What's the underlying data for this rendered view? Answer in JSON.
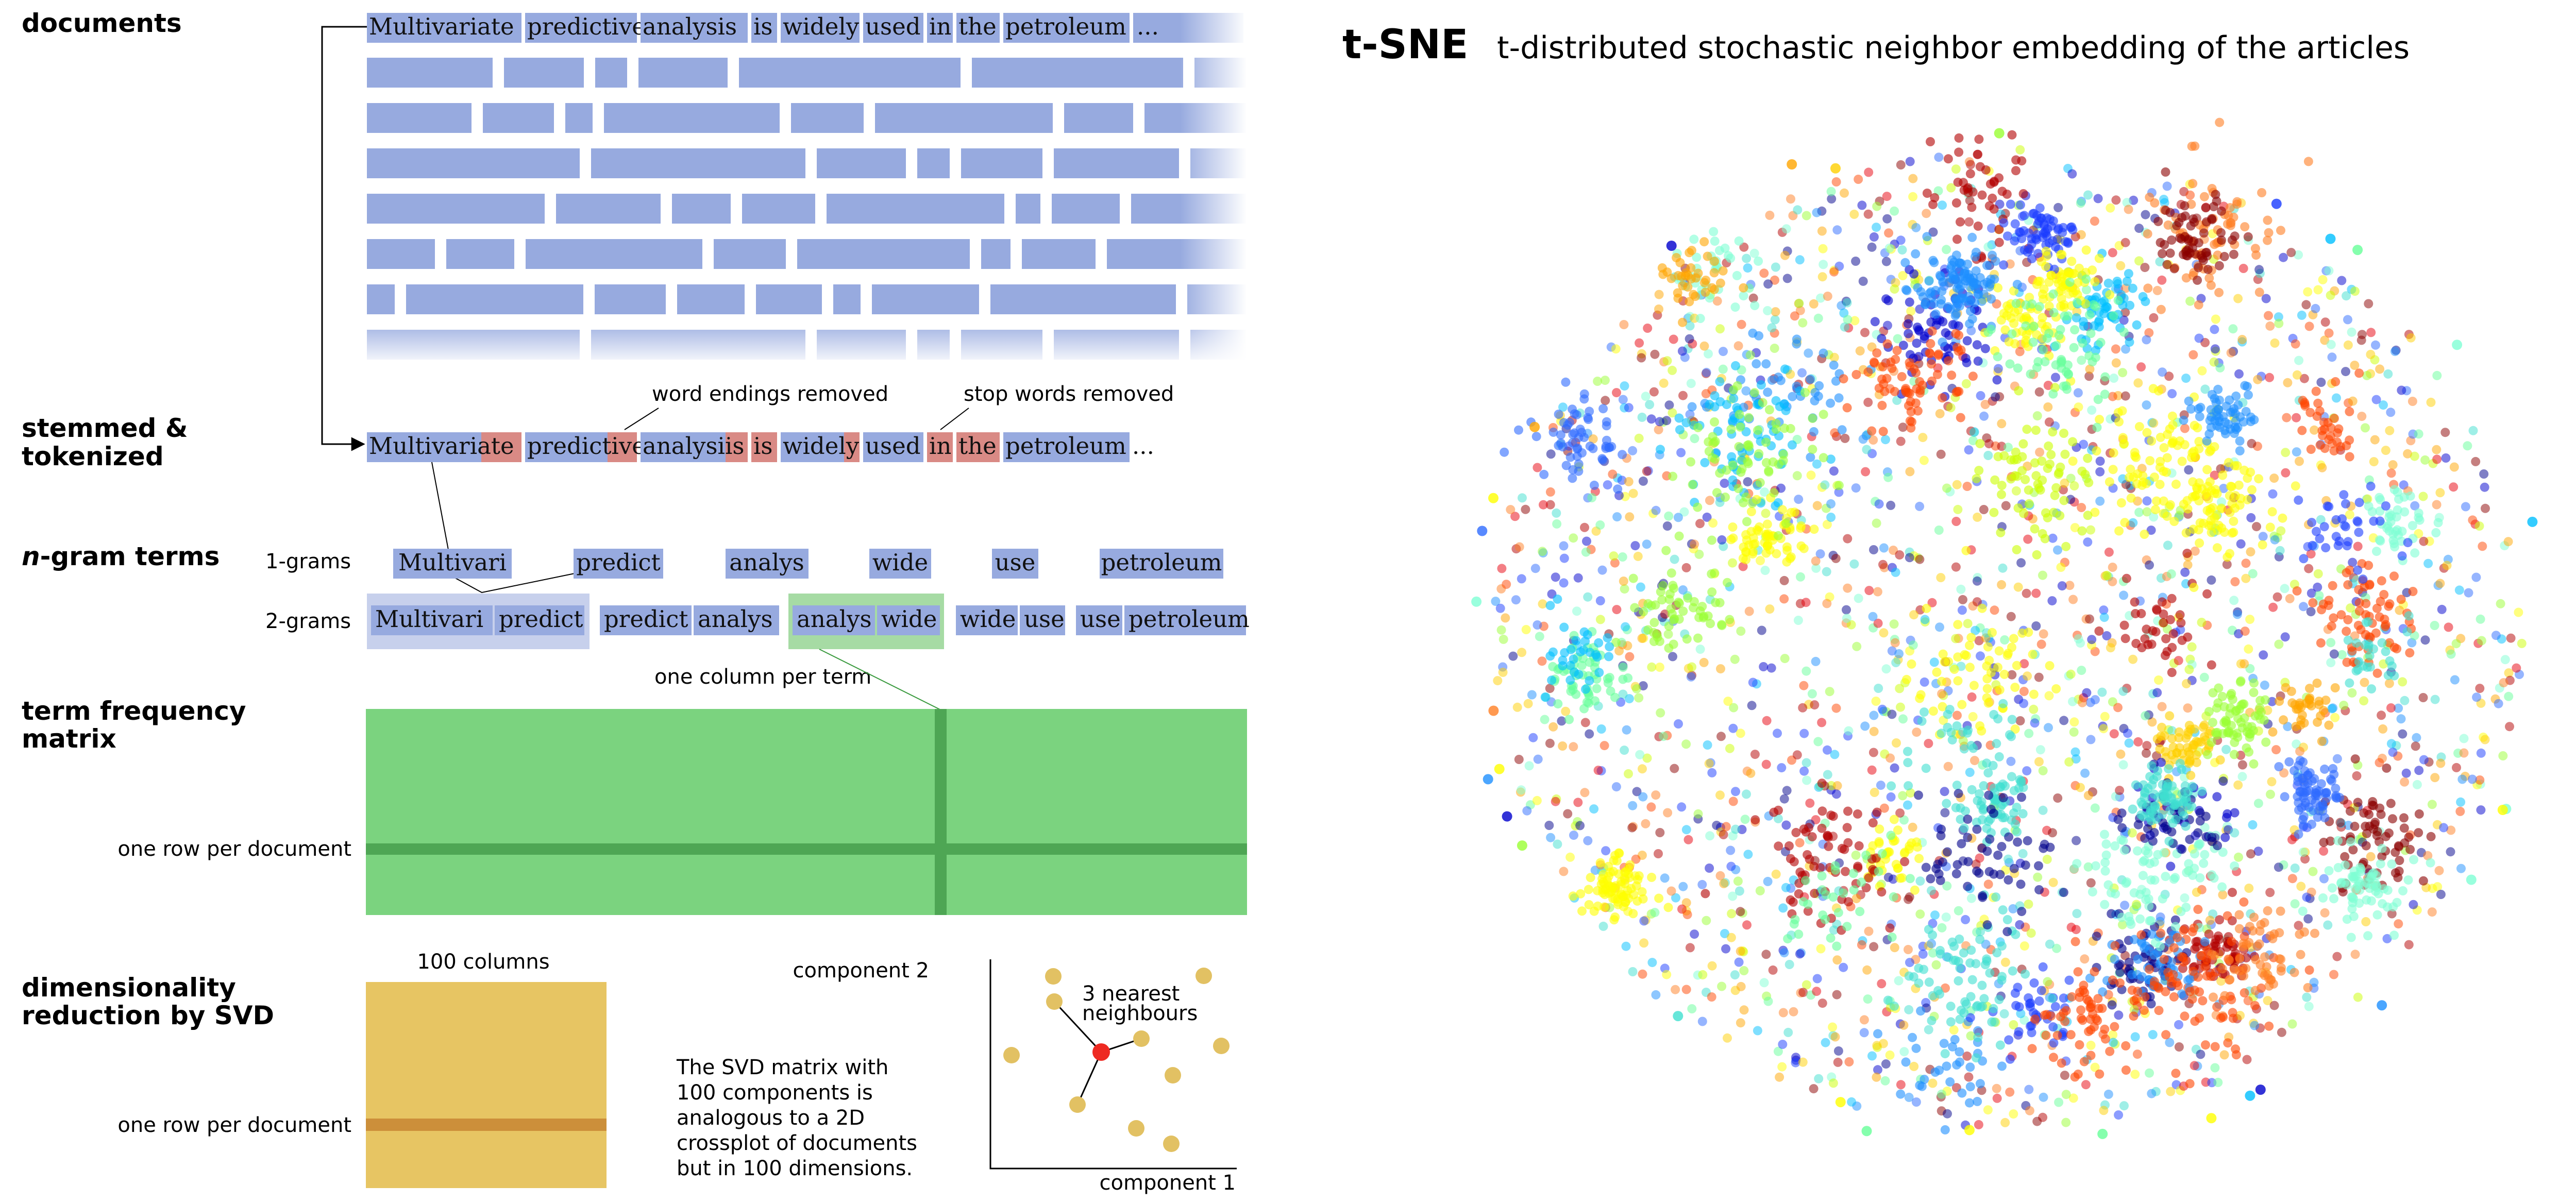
{
  "sections": {
    "documents": "documents",
    "stemmed_line1": "stemmed &",
    "stemmed_line2": "tokenized",
    "ngram_em": "n",
    "ngram_rest": "-gram terms",
    "tf_line1": "term frequency",
    "tf_line2": "matrix",
    "svd_line1": "dimensionality",
    "svd_line2": "reduction by SVD"
  },
  "documents": {
    "sentence_words": [
      "Multivariate",
      "predictive",
      "analysis",
      "is",
      "widely",
      "used",
      "in",
      "the",
      "petroleum"
    ],
    "ellipsis": "..."
  },
  "stemmed": {
    "annotation_endings": "word endings removed",
    "annotation_stopwords": "stop words removed",
    "tokens": [
      {
        "stem": "Multivari",
        "removed": "ate"
      },
      {
        "stem": "predicti",
        "removed": "ve"
      },
      {
        "stem": "analysi",
        "removed": "is"
      },
      {
        "stem": "",
        "removed": "is"
      },
      {
        "stem": "widel",
        "removed": "y"
      },
      {
        "stem": "used",
        "removed": ""
      },
      {
        "stem": "",
        "removed": "in"
      },
      {
        "stem": "",
        "removed": "the"
      },
      {
        "stem": "petroleum",
        "removed": ""
      }
    ],
    "ellipsis": "..."
  },
  "ngrams": {
    "label_1grams": "1-grams",
    "label_2grams": "2-grams",
    "unigrams": [
      "Multivari",
      "predict",
      "analys",
      "wide",
      "use",
      "petroleum"
    ],
    "bigrams": [
      [
        "Multivari",
        "predict"
      ],
      [
        "predict",
        "analys"
      ],
      [
        "analys",
        "wide"
      ],
      [
        "wide",
        "use"
      ],
      [
        "use",
        "petroleum"
      ]
    ]
  },
  "tf_matrix": {
    "column_label": "one column per term",
    "row_label": "one row per document"
  },
  "svd": {
    "columns_label": "100 columns",
    "row_label": "one row per document",
    "description": [
      "The SVD matrix with",
      "100 components is",
      "analogous to a 2D",
      "crossplot of documents",
      "but in 100 dimensions."
    ],
    "axis_x": "component 1",
    "axis_y": "component 2",
    "neighbours_line1": "3 nearest",
    "neighbours_line2": "neighbours"
  },
  "tsne": {
    "title": "t-SNE",
    "subtitle": "t-distributed stochastic neighbor embedding of the articles"
  },
  "colors": {
    "token_blue": "#97aadf",
    "token_red": "#d98a85",
    "token_green": "#a6dba4",
    "bigram_blue_bg": "#c7d0ec",
    "tf_green": "#7bd37f",
    "tf_dark": "#4ea654",
    "svd_gold": "#e7c563",
    "svd_dark": "#cc8f3a",
    "highlight_red": "#ee2a22"
  }
}
